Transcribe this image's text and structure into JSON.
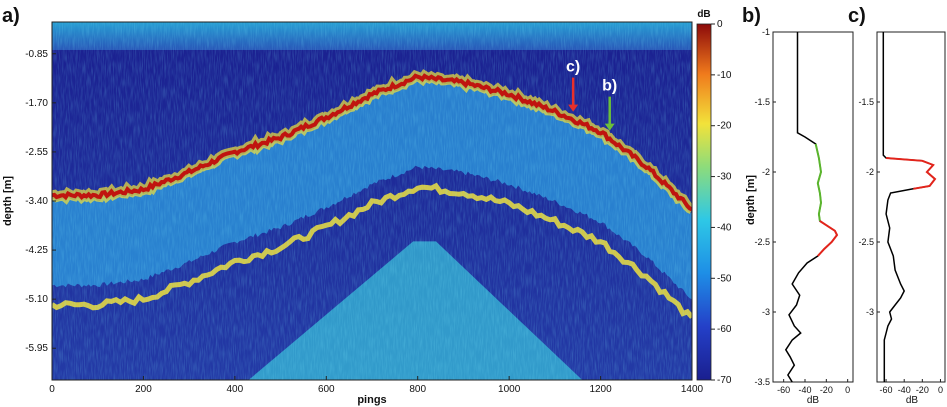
{
  "panels": {
    "a": {
      "label": "a)",
      "xlabel": "pings",
      "ylabel": "depth [m]",
      "xticks": [
        "0",
        "200",
        "400",
        "600",
        "800",
        "1000",
        "1200",
        "1400"
      ],
      "yticks": [
        "-0.85",
        "-1.70",
        "-2.55",
        "-3.40",
        "-4.25",
        "-5.10",
        "-5.95"
      ],
      "colorbar_title": "dB",
      "colorbar_ticks": [
        "0",
        "-10",
        "-20",
        "-30",
        "-40",
        "-50",
        "-60",
        "-70"
      ],
      "markers": [
        {
          "label": "c)",
          "ping": 1140,
          "color": "#e8302a"
        },
        {
          "label": "b)",
          "ping": 1220,
          "color": "#6bbf3a"
        }
      ]
    },
    "b": {
      "label": "b)",
      "ylabel": "depth [m]",
      "xlabel": "dB",
      "xticks": [
        "-60",
        "-40",
        "-20",
        "0"
      ],
      "yticks": [
        "-1",
        "-1.5",
        "-2",
        "-2.5",
        "-3",
        "-3.5"
      ]
    },
    "c": {
      "label": "c)",
      "xlabel": "dB",
      "xticks": [
        "-60",
        "-40",
        "-20",
        "0"
      ],
      "yticks": [
        "-1.5",
        "-2",
        "-2.5",
        "-3"
      ]
    }
  },
  "colors": {
    "background_low": "#1a1f8f",
    "mid": "#2ec8e6",
    "yellow": "#f2e23a",
    "surface": "#c0140f",
    "profile_line": "#000000",
    "profile_green": "#5ab52c",
    "profile_red": "#e3241b"
  },
  "chart_data": [
    {
      "type": "heatmap",
      "panel": "a",
      "xlabel": "pings",
      "ylabel": "depth [m]",
      "xlim": [
        0,
        1400
      ],
      "ylim": [
        -6.5,
        -0.3
      ],
      "colorbar": {
        "title": "dB",
        "range": [
          -70,
          0
        ]
      },
      "bottom_surface_trace": {
        "pings": [
          0,
          100,
          200,
          300,
          400,
          500,
          600,
          700,
          800,
          900,
          1000,
          1100,
          1200,
          1300,
          1400
        ],
        "depth": [
          -3.3,
          -3.3,
          -3.2,
          -2.9,
          -2.55,
          -2.3,
          -1.95,
          -1.55,
          -1.25,
          -1.35,
          -1.55,
          -1.85,
          -2.2,
          -2.8,
          -3.55
        ]
      }
    },
    {
      "type": "line",
      "panel": "b",
      "xlabel": "dB",
      "ylabel": "depth [m]",
      "xlim": [
        -70,
        5
      ],
      "ylim": [
        -3.5,
        -1
      ],
      "x": [
        -47,
        -47,
        -47,
        -47,
        -40,
        -30,
        -27,
        -25,
        -28,
        -26,
        -25,
        -27,
        -26,
        -20,
        -12,
        -10,
        -15,
        -22,
        -28,
        -38,
        -46,
        -52,
        -45,
        -48,
        -55,
        -50,
        -44,
        -52,
        -58,
        -54,
        -50,
        -56,
        -52
      ],
      "y": [
        -1.0,
        -1.3,
        -1.6,
        -1.72,
        -1.75,
        -1.8,
        -1.9,
        -2.0,
        -2.08,
        -2.15,
        -2.22,
        -2.3,
        -2.35,
        -2.38,
        -2.42,
        -2.45,
        -2.5,
        -2.55,
        -2.6,
        -2.65,
        -2.72,
        -2.8,
        -2.88,
        -2.95,
        -3.02,
        -3.1,
        -3.15,
        -3.2,
        -3.27,
        -3.32,
        -3.38,
        -3.45,
        -3.5
      ]
    },
    {
      "type": "line",
      "panel": "c",
      "xlabel": "dB",
      "xlim": [
        -70,
        5
      ],
      "ylim": [
        -3.5,
        -1
      ],
      "x": [
        -63,
        -63,
        -63,
        -63,
        -60,
        -20,
        -8,
        -15,
        -6,
        -12,
        -30,
        -55,
        -58,
        -60,
        -56,
        -58,
        -52,
        -50,
        -44,
        -40,
        -44,
        -50,
        -56,
        -54,
        -58,
        -60,
        -62,
        -62,
        -62
      ],
      "y": [
        -1.0,
        -1.3,
        -1.6,
        -1.88,
        -1.9,
        -1.92,
        -1.95,
        -2.0,
        -2.05,
        -2.1,
        -2.12,
        -2.15,
        -2.2,
        -2.3,
        -2.4,
        -2.5,
        -2.6,
        -2.7,
        -2.8,
        -2.85,
        -2.9,
        -2.95,
        -3.0,
        -3.05,
        -3.1,
        -3.15,
        -3.2,
        -3.35,
        -3.5
      ]
    }
  ]
}
